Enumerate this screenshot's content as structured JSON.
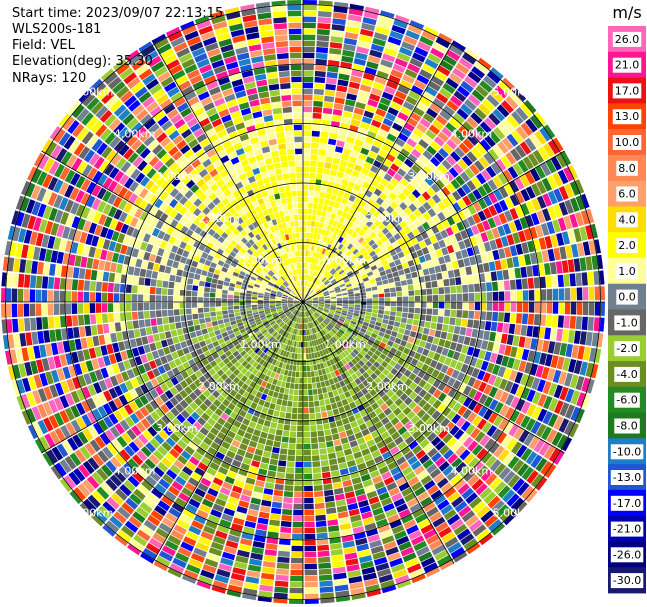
{
  "header": {
    "start_time": "Start time: 2023/09/07 22:13:15",
    "instrument": "WLS200s-181",
    "field": "Field: VEL",
    "elevation": "Elevation(deg): 35.30",
    "nrays": "NRays: 120"
  },
  "chart_data": {
    "type": "heatmap",
    "projection": "polar-ppi",
    "field": "VEL",
    "units": "m/s",
    "nrays": 120,
    "range_rings_km": [
      1,
      2,
      3,
      4,
      5
    ],
    "ring_labels": [
      {
        "text": "1.00km",
        "ring": 1
      },
      {
        "text": "2.00km",
        "ring": 2
      },
      {
        "text": "3.00km",
        "ring": 3
      },
      {
        "text": "4.00km",
        "ring": 4
      },
      {
        "text": "5.00km",
        "ring": 5
      }
    ],
    "colorbar": {
      "title": "m/s",
      "ticks": [
        "26.0",
        "21.0",
        "17.0",
        "13.0",
        "10.0",
        "8.0",
        "6.0",
        "4.0",
        "2.0",
        "1.0",
        "0.0",
        "-1.0",
        "-2.0",
        "-4.0",
        "-6.0",
        "-8.0",
        "-10.0",
        "-13.0",
        "-17.0",
        "-21.0",
        "-26.0",
        "-30.0"
      ],
      "colors": [
        "#ff66bb",
        "#ff1493",
        "#ee1111",
        "#ff4400",
        "#ff6633",
        "#ff8855",
        "#ff9f6a",
        "#ffdd00",
        "#ffff00",
        "#ffff99",
        "#708090",
        "#666666",
        "#9acd32",
        "#6b8e23",
        "#228b22",
        "#1e7a1e",
        "#1e7ec8",
        "#1f56d6",
        "#0000ff",
        "#0000b0",
        "#000080",
        "#191970"
      ]
    }
  }
}
